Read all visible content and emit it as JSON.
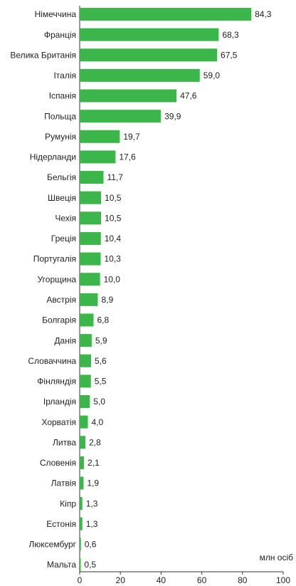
{
  "chart_data": {
    "type": "bar",
    "orientation": "horizontal",
    "categories": [
      "Німеччина",
      "Франція",
      "Велика Британія",
      "Італія",
      "Іспанія",
      "Польща",
      "Румунія",
      "Нідерланди",
      "Бельгія",
      "Швеція",
      "Чехія",
      "Греція",
      "Португалія",
      "Угорщина",
      "Австрія",
      "Болгарія",
      "Данія",
      "Словаччина",
      "Фінляндія",
      "Ірландія",
      "Хорватія",
      "Литва",
      "Словенія",
      "Латвія",
      "Кіпр",
      "Естонія",
      "Люксембург",
      "Мальта"
    ],
    "values": [
      84.3,
      68.3,
      67.5,
      59.0,
      47.6,
      39.9,
      19.7,
      17.6,
      11.7,
      10.5,
      10.5,
      10.4,
      10.3,
      10.0,
      8.9,
      6.8,
      5.9,
      5.6,
      5.5,
      5.0,
      4.0,
      2.8,
      2.1,
      1.9,
      1.3,
      1.3,
      0.6,
      0.5
    ],
    "value_labels": [
      "84,3",
      "68,3",
      "67,5",
      "59,0",
      "47,6",
      "39,9",
      "19,7",
      "17,6",
      "11,7",
      "10,5",
      "10,5",
      "10,4",
      "10,3",
      "10,0",
      "8,9",
      "6,8",
      "5,9",
      "5,6",
      "5,5",
      "5,0",
      "4,0",
      "2,8",
      "2,1",
      "1,9",
      "1,3",
      "1,3",
      "0,6",
      "0,5"
    ],
    "color": "#3cb54a",
    "xlabel": "млн осіб",
    "xlim": [
      0,
      100
    ],
    "xticks": [
      0,
      20,
      40,
      60,
      80,
      100
    ]
  }
}
